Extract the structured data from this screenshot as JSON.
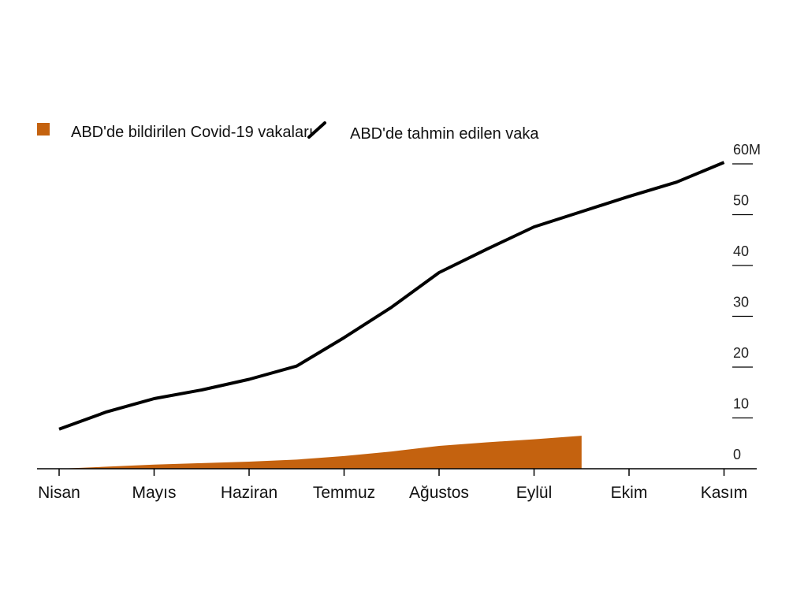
{
  "chart_data": {
    "type": "area",
    "categories": [
      "Nisan",
      "Mayıs",
      "Haziran",
      "Temmuz",
      "Ağustos",
      "Eylül",
      "Ekim",
      "Kasım"
    ],
    "y_ticks": [
      "0",
      "10",
      "20",
      "30",
      "40",
      "50",
      "60M"
    ],
    "ylim": [
      0,
      60
    ],
    "grid": false,
    "legend_position": "top-left",
    "series": [
      {
        "name": "ABD'de bildirilen Covid-19 vakaları",
        "kind": "area",
        "color": "#c4620f",
        "points": [
          [
            0,
            0
          ],
          [
            0.5,
            0.4
          ],
          [
            1,
            0.8
          ],
          [
            1.5,
            1.1
          ],
          [
            2,
            1.4
          ],
          [
            2.5,
            1.8
          ],
          [
            3,
            2.5
          ],
          [
            3.5,
            3.4
          ],
          [
            4,
            4.5
          ],
          [
            4.5,
            5.2
          ],
          [
            5,
            5.8
          ],
          [
            5.5,
            6.5
          ]
        ]
      },
      {
        "name": "ABD'de tahmin edilen vaka",
        "kind": "line",
        "color": "#000000",
        "points": [
          [
            0,
            7.8
          ],
          [
            0.5,
            11.2
          ],
          [
            1,
            13.8
          ],
          [
            1.5,
            15.5
          ],
          [
            2,
            17.6
          ],
          [
            2.5,
            20.2
          ],
          [
            3,
            25.8
          ],
          [
            3.5,
            31.8
          ],
          [
            4,
            38.6
          ],
          [
            4.5,
            43.2
          ],
          [
            5,
            47.6
          ],
          [
            5.5,
            50.6
          ],
          [
            6,
            53.6
          ],
          [
            6.5,
            56.4
          ],
          [
            7,
            60.3
          ]
        ]
      }
    ]
  }
}
